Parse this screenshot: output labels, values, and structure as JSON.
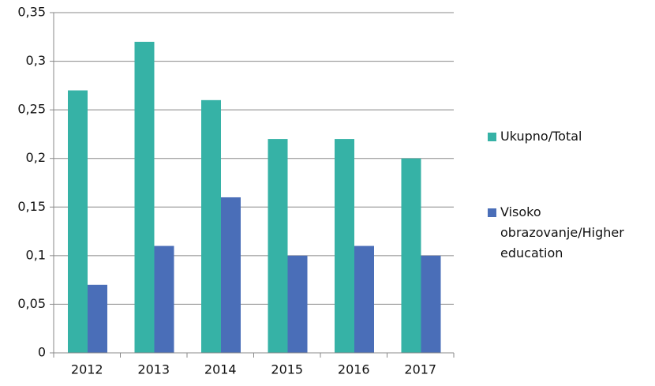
{
  "chart_data": {
    "type": "bar",
    "categories": [
      "2012",
      "2013",
      "2014",
      "2015",
      "2016",
      "2017"
    ],
    "series": [
      {
        "name": "Ukupno/Total",
        "color": "#36b2a6",
        "values": [
          0.27,
          0.32,
          0.26,
          0.22,
          0.22,
          0.2
        ]
      },
      {
        "name": "Visoko obrazovanje/Higher education",
        "color": "#4a6eb8",
        "values": [
          0.07,
          0.11,
          0.16,
          0.1,
          0.11,
          0.1
        ]
      }
    ],
    "ylim": [
      0,
      0.35
    ],
    "yticks": [
      0,
      {
        "value": 0.05,
        "label": "0,05"
      },
      {
        "value": 0.1,
        "label": "0,1"
      },
      {
        "value": 0.15,
        "label": "0,15"
      },
      {
        "value": 0.2,
        "label": "0,2"
      },
      {
        "value": 0.25,
        "label": "0,25"
      },
      {
        "value": 0.3,
        "label": "0,3"
      },
      {
        "value": 0.35,
        "label": "0,35"
      }
    ],
    "grid": true,
    "legend": "right"
  }
}
